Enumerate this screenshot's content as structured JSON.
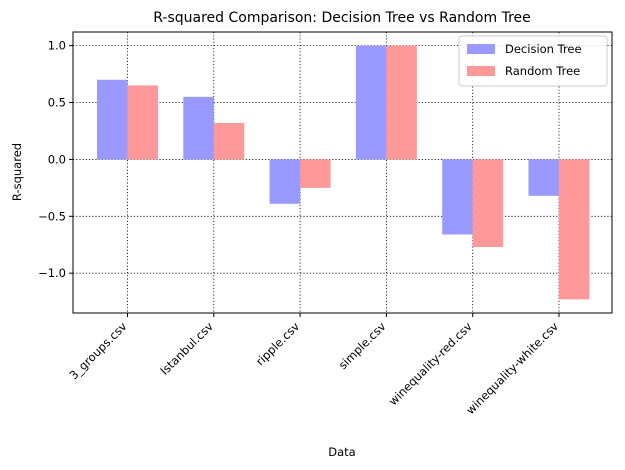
{
  "chart_data": {
    "type": "bar",
    "title": "R-squared Comparison: Decision Tree vs Random Tree",
    "xlabel": "Data",
    "ylabel": "R-squared",
    "categories": [
      "3_groups.csv",
      "Istanbul.csv",
      "ripple.csv",
      "simple.csv",
      "winequality-red.csv",
      "winequality-white.csv"
    ],
    "series": [
      {
        "name": "Decision Tree",
        "color": "#9999ff",
        "values": [
          0.7,
          0.55,
          -0.39,
          1.0,
          -0.66,
          -0.32
        ]
      },
      {
        "name": "Random Tree",
        "color": "#ff9999",
        "values": [
          0.65,
          0.32,
          -0.25,
          1.0,
          -0.77,
          -1.23
        ]
      }
    ],
    "ylim": [
      -1.35,
      1.12
    ],
    "yticks": [
      -1.0,
      -0.5,
      0.0,
      0.5,
      1.0
    ],
    "ytick_labels": [
      "−1.0",
      "−0.5",
      "0.0",
      "0.5",
      "1.0"
    ],
    "grid": true,
    "legend_position": "top-right"
  }
}
